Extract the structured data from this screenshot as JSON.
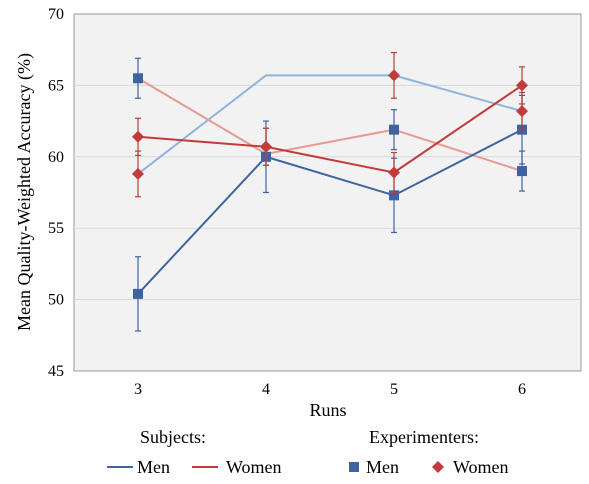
{
  "chart_data": {
    "type": "line",
    "title": "",
    "xlabel": "Runs",
    "ylabel": "Mean Quality-Weighted Accuracy (%)",
    "categories": [
      "3",
      "4",
      "5",
      "6"
    ],
    "ylim": [
      45,
      70
    ],
    "yticks": [
      "45",
      "50",
      "55",
      "60",
      "65",
      "70"
    ],
    "grid": true,
    "legend_position": "bottom",
    "legend_groups": [
      {
        "label": "Subjects:"
      },
      {
        "label": "Experimenters:"
      }
    ],
    "series": [
      {
        "name": "Men",
        "group": "Subjects",
        "color": "#8fb4de",
        "marker": "none",
        "values": [
          58.8,
          65.7,
          65.7,
          63.2
        ],
        "errors": [
          null,
          null,
          null,
          null
        ]
      },
      {
        "name": "Women",
        "group": "Subjects",
        "color": "#e59a95",
        "marker": "none",
        "values": [
          65.5,
          60.2,
          61.9,
          59.0
        ],
        "errors": [
          null,
          null,
          null,
          null
        ]
      },
      {
        "name": "Men",
        "group": "Experimenters",
        "color": "#3e63a0",
        "marker": "square",
        "values": [
          50.4,
          60.0,
          57.3,
          61.9
        ],
        "errors": [
          2.6,
          2.5,
          2.6,
          2.4
        ]
      },
      {
        "name": "Women",
        "group": "Experimenters",
        "color": "#c23b3b",
        "marker": "diamond",
        "values": [
          61.4,
          60.7,
          58.9,
          65.0
        ],
        "errors": [
          1.3,
          1.3,
          1.4,
          1.3
        ]
      },
      {
        "name": "Men",
        "group": "Experimenters-subjects-markers",
        "color": "#3e63a0",
        "marker": "square",
        "values": [
          65.5,
          null,
          61.9,
          59.0
        ],
        "errors": [
          1.4,
          null,
          1.4,
          1.4
        ],
        "hidden_in_legend": true
      },
      {
        "name": "Women",
        "group": "Experimenters-subjects-markers",
        "color": "#c23b3b",
        "marker": "diamond",
        "values": [
          58.8,
          60.7,
          65.7,
          63.2
        ],
        "errors": [
          1.6,
          1.3,
          1.6,
          1.3
        ],
        "hidden_in_legend": true
      }
    ]
  }
}
